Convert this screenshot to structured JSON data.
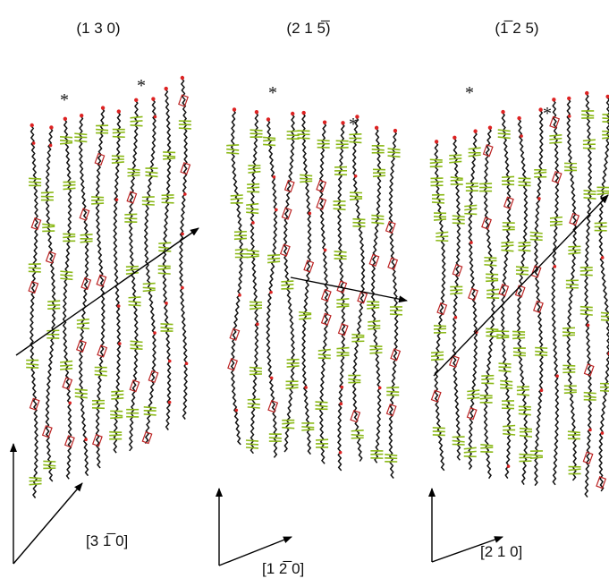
{
  "panels": [
    {
      "title": "(1 3 0)",
      "stars": [
        "*",
        "*"
      ],
      "direction": "[3 1̅ 0]"
    },
    {
      "title": "(2 1 5̅)",
      "stars": [
        "*",
        "*"
      ],
      "direction": "[1 2̅ 0]"
    },
    {
      "title": "(1̅ 2 5)",
      "stars": [
        "*",
        "*"
      ],
      "direction": "[2 1 0]"
    }
  ]
}
